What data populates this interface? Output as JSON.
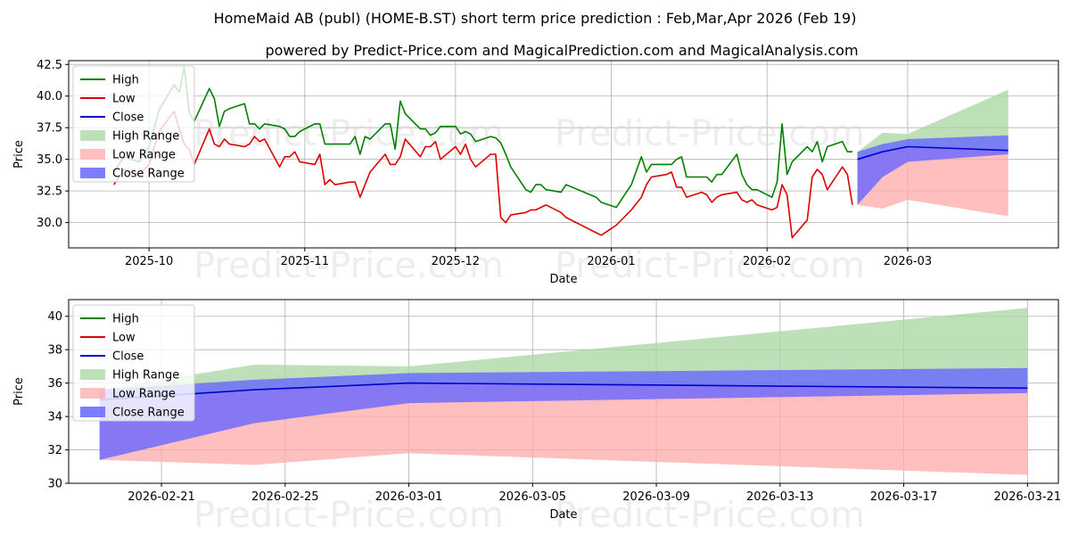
{
  "titles": {
    "line1": "HomeMaid AB (publ) (HOME-B.ST) short term price prediction : Feb,Mar,Apr 2026 (Feb 19)",
    "line2": "powered by Predict-Price.com and MagicalPrediction.com and MagicalAnalysis.com"
  },
  "watermark": "Predict-Price.com",
  "colors": {
    "high": "#008000",
    "low": "#dd0000",
    "close": "#0000cc",
    "high_range": "#a8d5a2",
    "low_range": "#ffaaaa",
    "close_range": "#6666ff"
  },
  "chart_data": [
    {
      "type": "line",
      "xlabel": "Date",
      "ylabel": "Price",
      "ylim": [
        28.0,
        42.8
      ],
      "yticks": [
        30.0,
        32.5,
        35.0,
        37.5,
        40.0,
        42.5
      ],
      "ytick_labels": [
        "30.0",
        "32.5",
        "35.0",
        "37.5",
        "40.0",
        "42.5"
      ],
      "xlim": [
        "2025-09-15",
        "2026-03-31"
      ],
      "xticks": [
        "2025-10-01",
        "2025-11-01",
        "2025-12-01",
        "2026-01-01",
        "2026-02-01",
        "2026-03-01"
      ],
      "xtick_labels": [
        "2025-10",
        "2025-11",
        "2025-12",
        "2026-01",
        "2026-02",
        "2026-03"
      ],
      "legend": [
        "High",
        "Low",
        "Close",
        "High Range",
        "Low Range",
        "Close Range"
      ],
      "legend_position": "top-left",
      "grid": true,
      "history": {
        "dates": [
          "2025-09-24",
          "2025-09-26",
          "2025-09-29",
          "2025-10-01",
          "2025-10-03",
          "2025-10-06",
          "2025-10-07",
          "2025-10-08",
          "2025-10-09",
          "2025-10-10",
          "2025-10-13",
          "2025-10-14",
          "2025-10-15",
          "2025-10-16",
          "2025-10-17",
          "2025-10-20",
          "2025-10-21",
          "2025-10-22",
          "2025-10-23",
          "2025-10-24",
          "2025-10-27",
          "2025-10-28",
          "2025-10-29",
          "2025-10-30",
          "2025-10-31",
          "2025-11-03",
          "2025-11-04",
          "2025-11-05",
          "2025-11-06",
          "2025-11-07",
          "2025-11-10",
          "2025-11-11",
          "2025-11-12",
          "2025-11-13",
          "2025-11-14",
          "2025-11-17",
          "2025-11-18",
          "2025-11-19",
          "2025-11-20",
          "2025-11-21",
          "2025-11-24",
          "2025-11-25",
          "2025-11-26",
          "2025-11-27",
          "2025-11-28",
          "2025-12-01",
          "2025-12-02",
          "2025-12-03",
          "2025-12-04",
          "2025-12-05",
          "2025-12-08",
          "2025-12-09",
          "2025-12-10",
          "2025-12-11",
          "2025-12-12",
          "2025-12-15",
          "2025-12-16",
          "2025-12-17",
          "2025-12-18",
          "2025-12-19",
          "2025-12-22",
          "2025-12-23",
          "2025-12-29",
          "2025-12-30",
          "2026-01-02",
          "2026-01-05",
          "2026-01-07",
          "2026-01-08",
          "2026-01-09",
          "2026-01-12",
          "2026-01-13",
          "2026-01-14",
          "2026-01-15",
          "2026-01-16",
          "2026-01-19",
          "2026-01-20",
          "2026-01-21",
          "2026-01-22",
          "2026-01-23",
          "2026-01-26",
          "2026-01-27",
          "2026-01-28",
          "2026-01-29",
          "2026-01-30",
          "2026-02-02",
          "2026-02-03",
          "2026-02-04",
          "2026-02-05",
          "2026-02-06",
          "2026-02-09",
          "2026-02-10",
          "2026-02-11",
          "2026-02-12",
          "2026-02-13",
          "2026-02-16",
          "2026-02-17",
          "2026-02-18"
        ],
        "high": [
          34.0,
          35.2,
          34.8,
          36.0,
          38.9,
          40.9,
          40.3,
          42.3,
          38.7,
          38.0,
          40.6,
          39.8,
          37.6,
          38.8,
          39.0,
          39.4,
          37.8,
          37.8,
          37.4,
          37.8,
          37.6,
          37.4,
          36.8,
          36.8,
          37.2,
          37.8,
          37.8,
          36.2,
          36.2,
          36.2,
          36.2,
          36.8,
          35.4,
          36.8,
          36.6,
          37.8,
          37.8,
          35.8,
          39.6,
          38.6,
          37.4,
          37.4,
          36.9,
          37.1,
          37.6,
          37.6,
          37.0,
          37.2,
          37.0,
          36.4,
          36.8,
          36.7,
          36.3,
          35.4,
          34.4,
          32.6,
          32.4,
          33.0,
          33.0,
          32.6,
          32.4,
          33.0,
          32.0,
          31.6,
          31.2,
          33.0,
          35.2,
          34.0,
          34.6,
          34.6,
          34.6,
          35.0,
          35.2,
          33.6,
          33.6,
          33.6,
          33.2,
          33.8,
          33.8,
          35.4,
          33.8,
          33.0,
          32.6,
          32.6,
          32.0,
          33.2,
          37.8,
          33.8,
          34.8,
          36.0,
          35.6,
          36.4,
          34.8,
          36.0,
          36.4,
          35.6,
          35.6
        ],
        "low": [
          33.0,
          34.2,
          33.8,
          34.6,
          37.2,
          38.8,
          37.4,
          36.2,
          35.8,
          34.6,
          37.4,
          36.2,
          36.0,
          36.6,
          36.2,
          36.0,
          36.2,
          36.8,
          36.4,
          36.6,
          34.4,
          35.2,
          35.2,
          35.6,
          34.8,
          34.6,
          35.4,
          33.0,
          33.4,
          33.0,
          33.2,
          33.2,
          32.0,
          33.0,
          34.0,
          35.4,
          34.6,
          34.6,
          35.2,
          36.6,
          35.2,
          36.0,
          36.0,
          36.4,
          35.0,
          36.0,
          35.4,
          36.2,
          35.0,
          34.4,
          35.4,
          35.4,
          30.4,
          30.0,
          30.6,
          30.8,
          31.0,
          31.0,
          31.2,
          31.4,
          30.8,
          30.4,
          29.2,
          29.0,
          29.8,
          31.0,
          32.0,
          33.0,
          33.6,
          33.8,
          34.0,
          32.8,
          32.8,
          32.0,
          32.4,
          32.2,
          31.6,
          32.0,
          32.2,
          32.4,
          31.8,
          31.6,
          31.8,
          31.4,
          31.0,
          31.2,
          33.0,
          32.2,
          28.8,
          30.2,
          33.6,
          34.2,
          33.8,
          32.6,
          34.4,
          33.8,
          31.4
        ]
      },
      "forecast": {
        "dates": [
          "2026-02-19",
          "2026-02-24",
          "2026-03-01",
          "2026-03-21"
        ],
        "close": [
          35.0,
          35.6,
          36.0,
          35.7
        ],
        "high_range_upper": [
          35.6,
          37.1,
          37.0,
          40.5
        ],
        "high_range_lower": [
          35.0,
          35.6,
          36.0,
          35.7
        ],
        "low_range_upper": [
          35.0,
          35.6,
          36.0,
          35.7
        ],
        "low_range_lower": [
          31.4,
          31.1,
          31.8,
          30.5
        ],
        "close_range_upper": [
          35.6,
          36.2,
          36.6,
          36.9
        ],
        "close_range_lower": [
          31.4,
          33.6,
          34.8,
          35.4
        ]
      }
    },
    {
      "type": "line",
      "xlabel": "Date",
      "ylabel": "Price",
      "ylim": [
        30.0,
        41.0
      ],
      "yticks": [
        30,
        32,
        34,
        36,
        38,
        40
      ],
      "ytick_labels": [
        "30",
        "32",
        "34",
        "36",
        "38",
        "40"
      ],
      "xlim": [
        "2026-02-18",
        "2026-03-22"
      ],
      "xticks": [
        "2026-02-21",
        "2026-02-25",
        "2026-03-01",
        "2026-03-05",
        "2026-03-09",
        "2026-03-13",
        "2026-03-17",
        "2026-03-21"
      ],
      "xtick_labels": [
        "2026-02-21",
        "2026-02-25",
        "2026-03-01",
        "2026-03-05",
        "2026-03-09",
        "2026-03-13",
        "2026-03-17",
        "2026-03-21"
      ],
      "legend": [
        "High",
        "Low",
        "Close",
        "High Range",
        "Low Range",
        "Close Range"
      ],
      "legend_position": "top-left",
      "grid": true,
      "forecast": {
        "dates": [
          "2026-02-19",
          "2026-02-24",
          "2026-03-01",
          "2026-03-21"
        ],
        "close": [
          35.0,
          35.6,
          36.0,
          35.7
        ],
        "high_range_upper": [
          35.6,
          37.1,
          37.0,
          40.5
        ],
        "high_range_lower": [
          35.0,
          35.6,
          36.0,
          35.7
        ],
        "low_range_upper": [
          35.0,
          35.6,
          36.0,
          35.7
        ],
        "low_range_lower": [
          31.4,
          31.1,
          31.8,
          30.5
        ],
        "close_range_upper": [
          35.6,
          36.2,
          36.6,
          36.9
        ],
        "close_range_lower": [
          31.4,
          33.6,
          34.8,
          35.4
        ]
      }
    }
  ]
}
